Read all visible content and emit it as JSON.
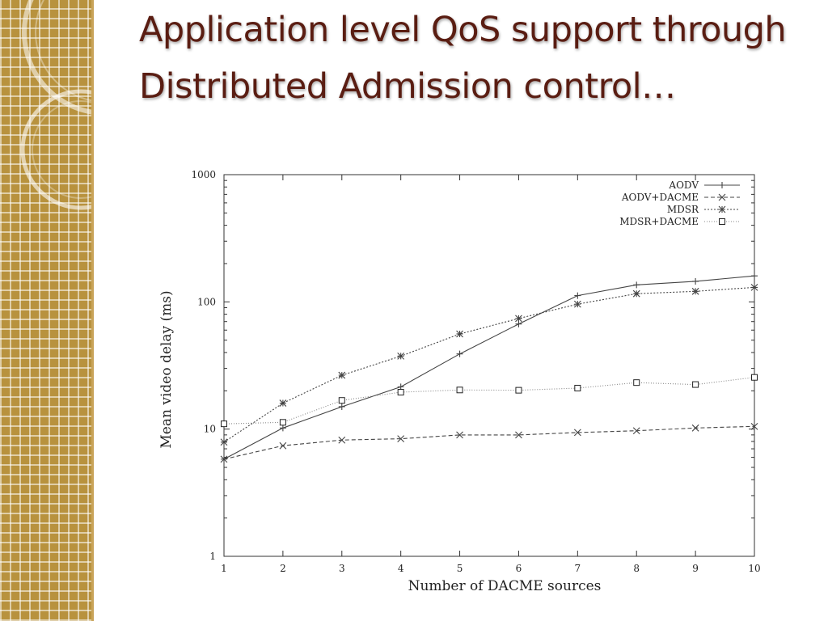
{
  "slide": {
    "title": "Application level QoS support through Distributed Admission control…"
  },
  "colors": {
    "sidebar": "#b8923e",
    "title": "#5a1d12"
  },
  "chart_data": {
    "type": "line",
    "xlabel": "Number of DACME sources",
    "ylabel": "Mean video delay (ms)",
    "x": [
      1,
      2,
      3,
      4,
      5,
      6,
      7,
      8,
      9,
      10
    ],
    "xlim": [
      1,
      10
    ],
    "ylim": [
      1,
      1000
    ],
    "yscale": "log",
    "y_ticks": [
      "1",
      "10",
      "100",
      "1000"
    ],
    "x_ticks": [
      "1",
      "2",
      "3",
      "4",
      "5",
      "6",
      "7",
      "8",
      "9",
      "10"
    ],
    "grid": false,
    "legend_position": "top-right",
    "series": [
      {
        "name": "AODV",
        "marker": "plus",
        "dash": "none",
        "stroke": "#444444",
        "values": [
          5.8,
          10.2,
          15.0,
          21.5,
          39.0,
          67.0,
          112.0,
          136.0,
          145.0,
          160.0
        ]
      },
      {
        "name": "AODV+DACME",
        "marker": "cross",
        "dash": "5,3",
        "stroke": "#444444",
        "values": [
          5.8,
          7.4,
          8.2,
          8.4,
          9.0,
          9.0,
          9.4,
          9.7,
          10.2,
          10.5
        ]
      },
      {
        "name": "MDSR",
        "marker": "star",
        "dash": "2,2",
        "stroke": "#444444",
        "values": [
          7.9,
          16.0,
          26.5,
          37.5,
          56.0,
          74.0,
          96.0,
          116.0,
          121.0,
          130.0
        ]
      },
      {
        "name": "MDSR+DACME",
        "marker": "square",
        "dash": "1,2",
        "stroke": "#888888",
        "values": [
          11.0,
          11.3,
          16.8,
          19.5,
          20.3,
          20.2,
          21.0,
          23.2,
          22.4,
          25.5
        ]
      }
    ]
  }
}
